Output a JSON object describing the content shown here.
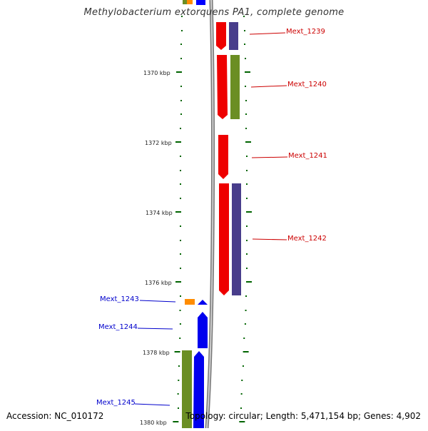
{
  "title": "Methylobacterium extorquens PA1, complete genome",
  "accession": "Accession: NC_010172",
  "summary": "Topology: circular; Length: 5,471,154 bp; Genes: 4,902",
  "colors": {
    "forward_cds": "#0000ff",
    "reverse_cds": "#ff0000",
    "cog_green": "#6b8e23",
    "cog_purple": "#483d8b",
    "cog_orange": "#ff8c00",
    "tick": "#006400",
    "backbone": "#8c8c8c",
    "label_red": "#cc0000",
    "label_blue": "#0000cc"
  },
  "ticks": [
    {
      "label": "1370 kbp"
    },
    {
      "label": "1372 kbp"
    },
    {
      "label": "1374 kbp"
    },
    {
      "label": "1376 kbp"
    },
    {
      "label": "1378 kbp"
    },
    {
      "label": "1380 kbp"
    }
  ],
  "genes": [
    {
      "label": "Mext_1239",
      "strand": "reverse"
    },
    {
      "label": "Mext_1240",
      "strand": "reverse"
    },
    {
      "label": "Mext_1241",
      "strand": "reverse"
    },
    {
      "label": "Mext_1242",
      "strand": "reverse"
    },
    {
      "label": "Mext_1243",
      "strand": "forward"
    },
    {
      "label": "Mext_1244",
      "strand": "forward"
    },
    {
      "label": "Mext_1245",
      "strand": "forward"
    }
  ]
}
